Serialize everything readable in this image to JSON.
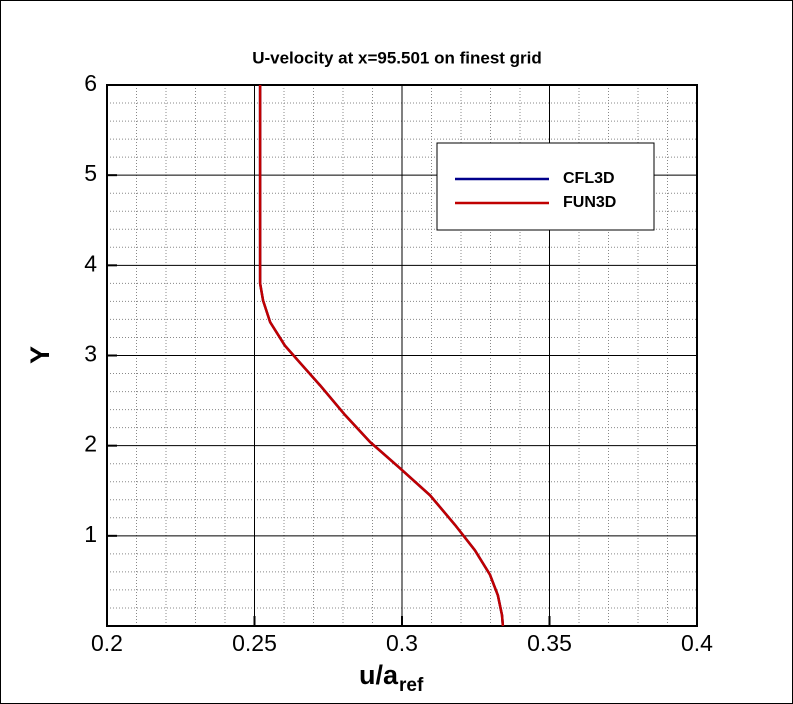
{
  "chart_data": {
    "type": "line",
    "title": "U-velocity at x=95.501 on finest grid",
    "x_label": "u/a",
    "x_label_sub": "ref",
    "y_label": "Y",
    "xlim": [
      0.2,
      0.4
    ],
    "xticks": [
      0.2,
      0.25,
      0.3,
      0.35,
      0.4
    ],
    "ylim": [
      0,
      6
    ],
    "yticks": [
      1,
      2,
      3,
      4,
      5,
      6
    ],
    "grid": true,
    "legend": "upper right",
    "series": [
      {
        "name": "CFL3D",
        "color": "#00008b",
        "x": [
          0.2519,
          0.2519,
          0.2529,
          0.2553,
          0.2603,
          0.2654,
          0.2722,
          0.2807,
          0.2892,
          0.2993,
          0.3095,
          0.318,
          0.3247,
          0.3298,
          0.3325,
          0.3339,
          0.3342
        ],
        "values": [
          6,
          3.8,
          3.61,
          3.37,
          3.11,
          2.92,
          2.67,
          2.34,
          2.04,
          1.75,
          1.45,
          1.12,
          0.84,
          0.57,
          0.34,
          0.12,
          0.0
        ]
      },
      {
        "name": "FUN3D",
        "color": "#c00000",
        "x": [
          0.2519,
          0.2519,
          0.2529,
          0.2553,
          0.2603,
          0.2654,
          0.2722,
          0.2807,
          0.2892,
          0.2993,
          0.3095,
          0.318,
          0.3247,
          0.3298,
          0.3325,
          0.3339,
          0.3342
        ],
        "values": [
          6,
          3.8,
          3.61,
          3.37,
          3.11,
          2.92,
          2.67,
          2.34,
          2.04,
          1.75,
          1.45,
          1.12,
          0.84,
          0.57,
          0.34,
          0.12,
          0.0
        ]
      }
    ]
  }
}
